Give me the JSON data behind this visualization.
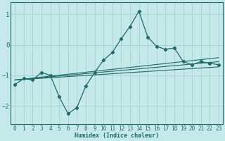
{
  "title": "",
  "xlabel": "Humidex (Indice chaleur)",
  "bg_color": "#c5e8e8",
  "line_color": "#1e6b6b",
  "grid_color": "#aad4d4",
  "xlim": [
    -0.5,
    23.5
  ],
  "ylim": [
    -2.6,
    1.4
  ],
  "yticks": [
    -2,
    -1,
    0,
    1
  ],
  "xticks": [
    0,
    1,
    2,
    3,
    4,
    5,
    6,
    7,
    8,
    9,
    10,
    11,
    12,
    13,
    14,
    15,
    16,
    17,
    18,
    19,
    20,
    21,
    22,
    23
  ],
  "main_x": [
    0,
    1,
    2,
    3,
    4,
    5,
    6,
    7,
    8,
    9,
    10,
    11,
    12,
    13,
    14,
    15,
    16,
    17,
    18,
    19,
    20,
    21,
    22,
    23
  ],
  "main_y": [
    -1.3,
    -1.1,
    -1.15,
    -0.9,
    -1.0,
    -1.7,
    -2.25,
    -2.05,
    -1.35,
    -0.9,
    -0.5,
    -0.25,
    0.2,
    0.6,
    1.1,
    0.25,
    -0.05,
    -0.15,
    -0.1,
    -0.55,
    -0.65,
    -0.55,
    -0.6,
    -0.65
  ],
  "line1_x": [
    0,
    23
  ],
  "line1_y": [
    -1.15,
    -0.55
  ],
  "line2_x": [
    0,
    23
  ],
  "line2_y": [
    -1.15,
    -0.42
  ],
  "line3_x": [
    0,
    23
  ],
  "line3_y": [
    -1.15,
    -0.72
  ]
}
